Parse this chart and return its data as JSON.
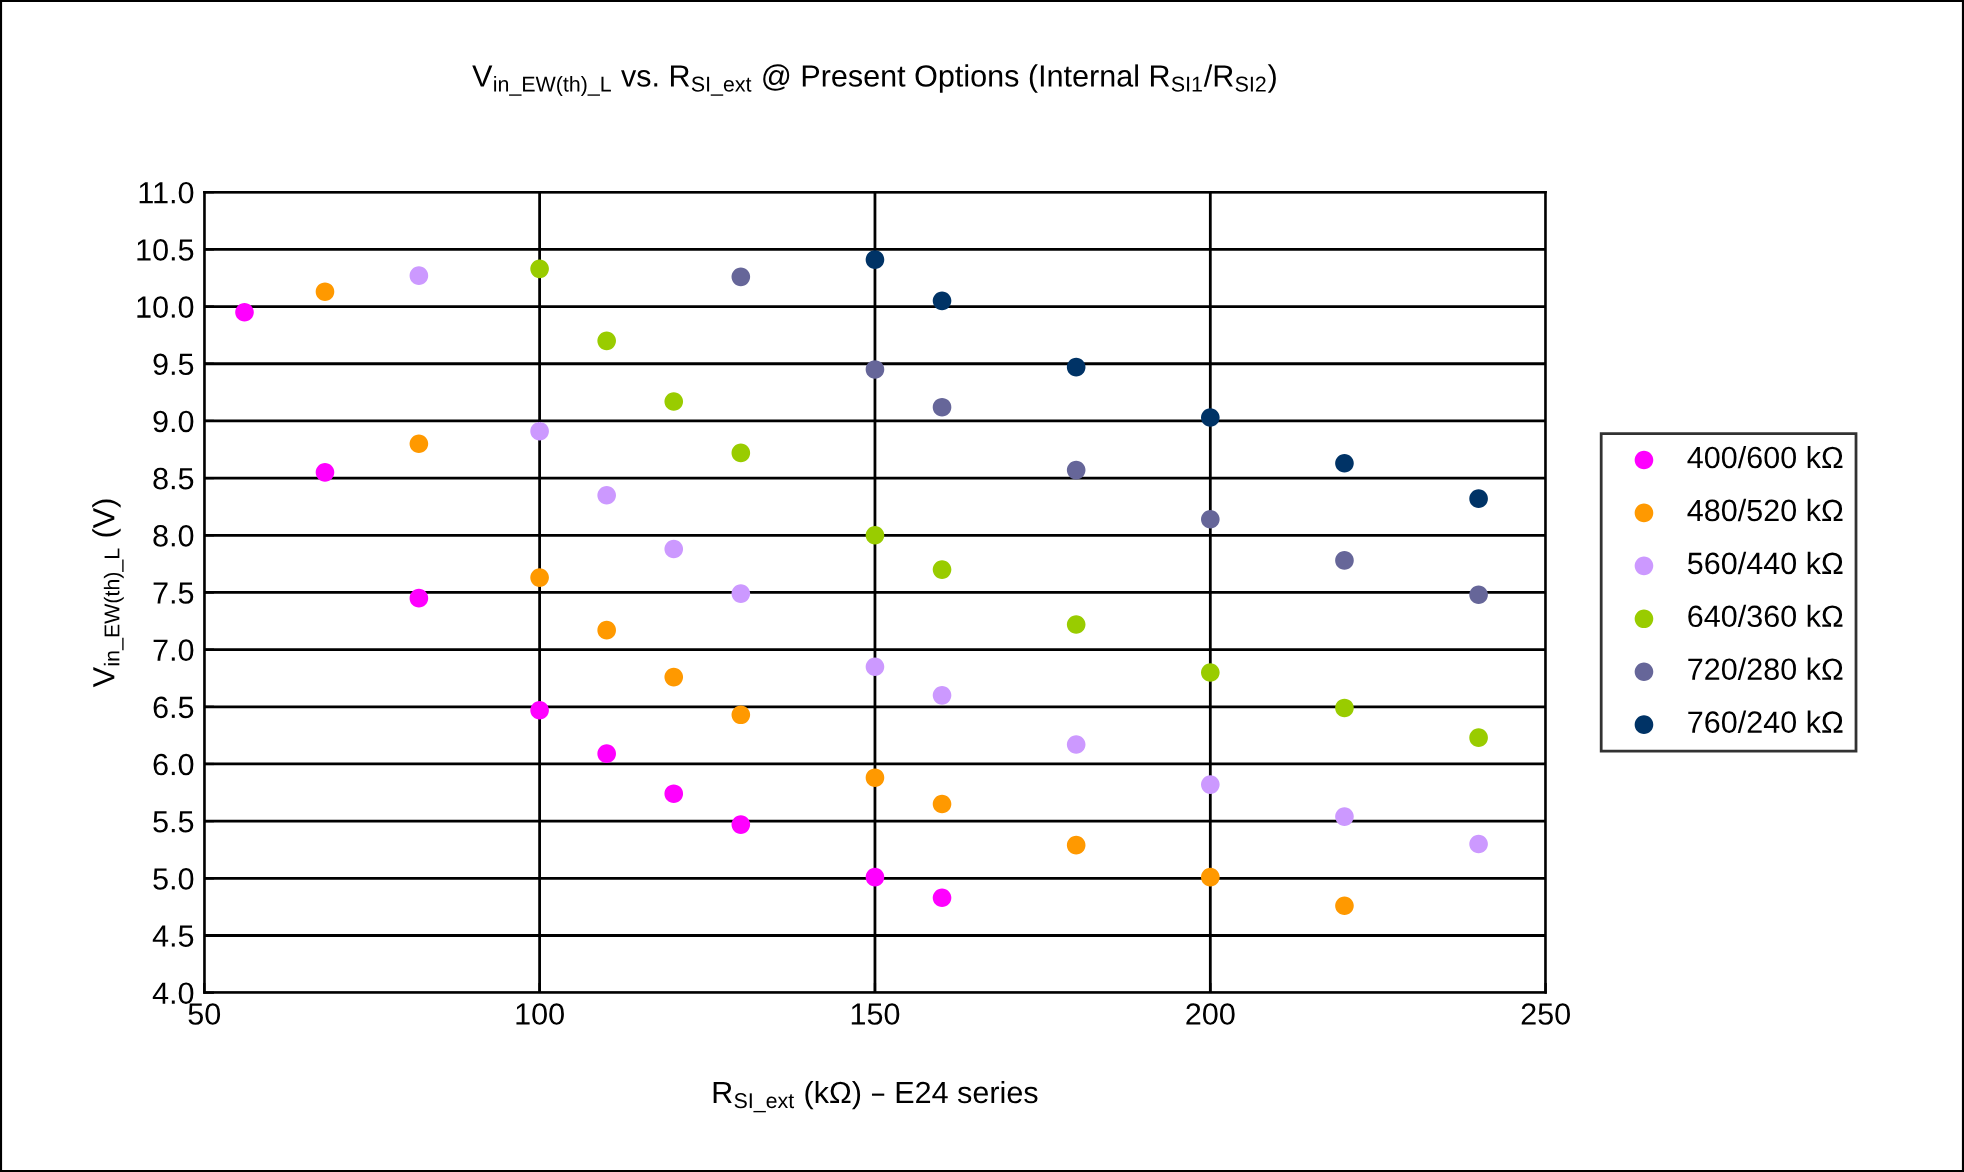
{
  "chart_data": {
    "type": "scatter",
    "title": "V$_{in_EW(th)_L}$ vs. R$_{SI_ext}$ @ Present Options (Internal R$_{SI1}$/R$_{SI2}$)",
    "xlabel": "R$_{SI_ext}$ (kΩ) – E24 series",
    "ylabel": "V$_{in_EW(th)_L}$ (V)",
    "xlim": [
      50,
      250
    ],
    "xticks": [
      50,
      100,
      150,
      200,
      250
    ],
    "ylim": [
      4.0,
      11.0
    ],
    "yticks": [
      {
        "value": 4.0,
        "label": "4.0"
      },
      {
        "value": 4.5,
        "label": "4.5"
      },
      {
        "value": 5.0,
        "label": "5.0"
      },
      {
        "value": 5.5,
        "label": "5.5"
      },
      {
        "value": 6.0,
        "label": "6.0"
      },
      {
        "value": 6.5,
        "label": "6.5"
      },
      {
        "value": 7.0,
        "label": "7.0"
      },
      {
        "value": 7.5,
        "label": "7.5"
      },
      {
        "value": 8.0,
        "label": "8.0"
      },
      {
        "value": 8.5,
        "label": "8.5"
      },
      {
        "value": 9.0,
        "label": "9.0"
      },
      {
        "value": 9.5,
        "label": "9.5"
      },
      {
        "value": 10.0,
        "label": "10.0"
      },
      {
        "value": 10.5,
        "label": "10.5"
      },
      {
        "value": 11.0,
        "label": "11.0"
      }
    ],
    "grid": true,
    "legend": "right",
    "marker": "circle",
    "series": [
      {
        "name": "400/600 kΩ",
        "color": "#ff00ff",
        "x": [
          56,
          68,
          82,
          100,
          110,
          120,
          130,
          150,
          160
        ],
        "values": [
          9.95,
          8.55,
          7.45,
          6.47,
          6.09,
          5.74,
          5.47,
          5.01,
          4.83
        ]
      },
      {
        "name": "480/520 kΩ",
        "color": "#ff9900",
        "x": [
          68,
          82,
          100,
          110,
          120,
          130,
          150,
          160,
          180,
          200,
          220
        ],
        "values": [
          10.13,
          8.8,
          7.63,
          7.17,
          6.76,
          6.43,
          5.88,
          5.65,
          5.29,
          5.01,
          4.76
        ]
      },
      {
        "name": "560/440 kΩ",
        "color": "#cc99ff",
        "x": [
          82,
          100,
          110,
          120,
          130,
          150,
          160,
          180,
          200,
          220,
          240
        ],
        "values": [
          10.27,
          8.91,
          8.35,
          7.88,
          7.49,
          6.85,
          6.6,
          6.17,
          5.82,
          5.54,
          5.3
        ]
      },
      {
        "name": "640/360 kΩ",
        "color": "#99cc00",
        "x": [
          100,
          110,
          120,
          130,
          150,
          160,
          180,
          200,
          220,
          240
        ],
        "values": [
          10.33,
          9.7,
          9.17,
          8.72,
          8.0,
          7.7,
          7.22,
          6.8,
          6.49,
          6.23
        ]
      },
      {
        "name": "720/280 kΩ",
        "color": "#666699",
        "x": [
          130,
          150,
          160,
          180,
          200,
          220,
          240
        ],
        "values": [
          10.26,
          9.45,
          9.12,
          8.57,
          8.14,
          7.78,
          7.48
        ]
      },
      {
        "name": "760/240 kΩ",
        "color": "#003366",
        "x": [
          150,
          160,
          180,
          200,
          220,
          240
        ],
        "values": [
          10.41,
          10.05,
          9.47,
          9.03,
          8.63,
          8.32
        ]
      }
    ]
  }
}
